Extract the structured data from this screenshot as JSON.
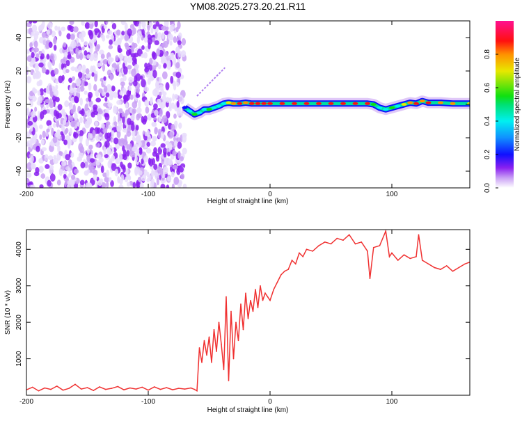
{
  "title": "YM08.2025.273.20.21.R11",
  "chart_data": [
    {
      "type": "heatmap",
      "xlabel": "Height of straight line (km)",
      "ylabel": "Frequency (Hz)",
      "xlim": [
        -200,
        164
      ],
      "ylim": [
        -50,
        50
      ],
      "xticks": [
        "-200",
        "-100",
        "0",
        "100"
      ],
      "yticks": [
        "-40",
        "-20",
        "0",
        "20",
        "40"
      ],
      "noise_region_x": [
        -200,
        -70
      ],
      "ridge": {
        "x": [
          -70,
          -66,
          -62,
          -58,
          -54,
          -50,
          -46,
          -42,
          -38,
          -34,
          -30,
          -25,
          -20,
          -15,
          -10,
          -5,
          0,
          10,
          20,
          30,
          40,
          50,
          60,
          70,
          80,
          85,
          90,
          95,
          100,
          105,
          110,
          115,
          120,
          125,
          130,
          140,
          150,
          164
        ],
        "freq": [
          -2,
          -4,
          -6,
          -5,
          -3,
          -3,
          -2,
          -1,
          0.5,
          1,
          0.5,
          0.5,
          1,
          0.5,
          0.5,
          0.5,
          0.5,
          0.5,
          0.5,
          0.5,
          0.5,
          0.5,
          0.5,
          0.5,
          0.5,
          0,
          -2,
          -3,
          -2,
          -1,
          0,
          1,
          0.5,
          2,
          1,
          1,
          0.5,
          0.5
        ],
        "amplitude": [
          0.3,
          0.5,
          0.6,
          0.5,
          0.5,
          0.6,
          0.4,
          0.5,
          0.5,
          0.7,
          0.8,
          0.9,
          0.8,
          0.9,
          0.9,
          0.9,
          0.95,
          0.95,
          0.95,
          0.9,
          0.95,
          0.95,
          0.95,
          0.9,
          0.9,
          0.6,
          0.5,
          0.5,
          0.6,
          0.5,
          0.7,
          0.8,
          0.9,
          0.8,
          0.9,
          0.8,
          0.8,
          0.7
        ]
      },
      "colorbar": {
        "label": "Normalized spectral amplitude",
        "range": [
          0,
          1
        ],
        "ticks": [
          "0.0",
          "0.2",
          "0.4",
          "0.6",
          "0.8"
        ]
      }
    },
    {
      "type": "line",
      "xlabel": "Height of straight line (km)",
      "ylabel": "SNR (10 * v/v)",
      "xlim": [
        -200,
        164
      ],
      "ylim": [
        0,
        4540
      ],
      "xticks": [
        "-200",
        "-100",
        "0",
        "100"
      ],
      "yticks": [
        "1000",
        "2000",
        "3000",
        "4000"
      ],
      "series": [
        {
          "name": "SNR",
          "color": "#f03030",
          "x": [
            -200,
            -195,
            -190,
            -185,
            -180,
            -175,
            -170,
            -165,
            -160,
            -155,
            -150,
            -145,
            -140,
            -135,
            -130,
            -125,
            -120,
            -115,
            -110,
            -105,
            -100,
            -95,
            -90,
            -85,
            -80,
            -75,
            -70,
            -65,
            -62,
            -60,
            -58,
            -56,
            -54,
            -52,
            -50,
            -48,
            -46,
            -44,
            -42,
            -40,
            -38,
            -36,
            -34,
            -32,
            -30,
            -28,
            -26,
            -24,
            -22,
            -20,
            -18,
            -16,
            -14,
            -12,
            -10,
            -8,
            -6,
            -4,
            -2,
            0,
            3,
            6,
            9,
            12,
            15,
            18,
            21,
            24,
            27,
            30,
            35,
            40,
            45,
            50,
            55,
            60,
            65,
            70,
            75,
            80,
            82,
            85,
            90,
            95,
            98,
            100,
            105,
            110,
            115,
            120,
            122,
            125,
            130,
            135,
            140,
            145,
            150,
            155,
            160,
            164
          ],
          "y": [
            150,
            220,
            120,
            200,
            160,
            250,
            140,
            190,
            300,
            170,
            210,
            130,
            230,
            160,
            190,
            240,
            150,
            200,
            170,
            220,
            140,
            230,
            160,
            210,
            150,
            190,
            170,
            200,
            160,
            120,
            1300,
            900,
            1500,
            1100,
            1600,
            900,
            1800,
            1200,
            2000,
            1400,
            700,
            2700,
            400,
            2300,
            1000,
            2000,
            1500,
            2500,
            1800,
            2800,
            2100,
            2600,
            2300,
            2900,
            2400,
            3000,
            2600,
            2800,
            2700,
            2600,
            2900,
            3100,
            3300,
            3400,
            3450,
            3700,
            3600,
            3900,
            3800,
            4000,
            3950,
            4100,
            4200,
            4150,
            4300,
            4250,
            4400,
            4150,
            4200,
            3950,
            3200,
            4050,
            4100,
            4500,
            3800,
            3900,
            3700,
            3850,
            3750,
            3800,
            4400,
            3700,
            3600,
            3500,
            3450,
            3550,
            3400,
            3500,
            3600,
            3650
          ]
        }
      ]
    }
  ]
}
